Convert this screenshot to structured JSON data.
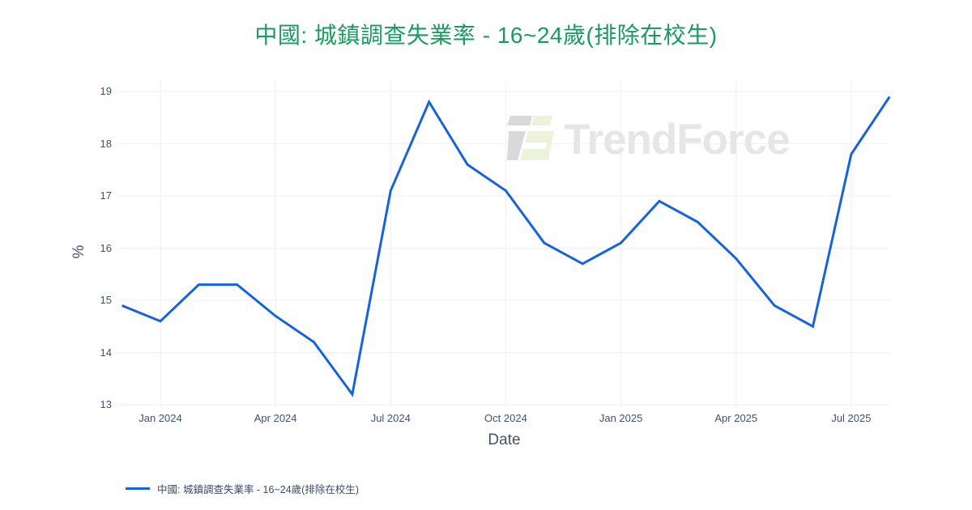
{
  "title": {
    "text": "中國: 城鎮調查失業率 - 16~24歲(排除在校生)"
  },
  "watermark": {
    "brand": "TrendForce"
  },
  "legend": {
    "label": "中國: 城鎮調查失業率 - 16~24歲(排除在校生)"
  },
  "colors": {
    "title_green": "#199a60",
    "line_blue": "#1663dd",
    "tick_label": "#42516d",
    "gridline": "#f0f2f6",
    "watermark_text": "#e6e6e6",
    "logo_gray": "#d9d9d9",
    "logo_green": "#edf2da",
    "background": "#ffffff"
  },
  "chart_data": {
    "type": "line",
    "title": "中國: 城鎮調查失業率 - 16~24歲(排除在校生)",
    "xlabel": "Date",
    "ylabel": "%",
    "x": [
      "Dec 2023",
      "Jan 2024",
      "Feb 2024",
      "Mar 2024",
      "Apr 2024",
      "May 2024",
      "Jun 2024",
      "Jul 2024",
      "Aug 2024",
      "Sep 2024",
      "Oct 2024",
      "Nov 2024",
      "Dec 2024",
      "Jan 2025",
      "Feb 2025",
      "Mar 2025",
      "Apr 2025",
      "May 2025",
      "Jun 2025",
      "Jul 2025",
      "Aug 2025"
    ],
    "series": [
      {
        "name": "中國: 城鎮調查失業率 - 16~24歲(排除在校生)",
        "values": [
          14.9,
          14.6,
          15.3,
          15.3,
          14.7,
          14.2,
          13.2,
          17.1,
          18.8,
          17.6,
          17.1,
          16.1,
          15.7,
          16.1,
          16.9,
          16.5,
          15.8,
          14.9,
          14.5,
          17.8,
          18.9
        ]
      }
    ],
    "x_ticks": [
      {
        "index": 1,
        "label": "Jan 2024"
      },
      {
        "index": 4,
        "label": "Apr 2024"
      },
      {
        "index": 7,
        "label": "Jul 2024"
      },
      {
        "index": 10,
        "label": "Oct 2024"
      },
      {
        "index": 13,
        "label": "Jan 2025"
      },
      {
        "index": 16,
        "label": "Apr 2025"
      },
      {
        "index": 19,
        "label": "Jul 2025"
      }
    ],
    "y_ticks": [
      13,
      14,
      15,
      16,
      17,
      18,
      19
    ],
    "ylim": [
      12.95,
      19.25
    ],
    "grid": true,
    "legend_position": "bottom-left",
    "line_color": "#1663dd"
  }
}
